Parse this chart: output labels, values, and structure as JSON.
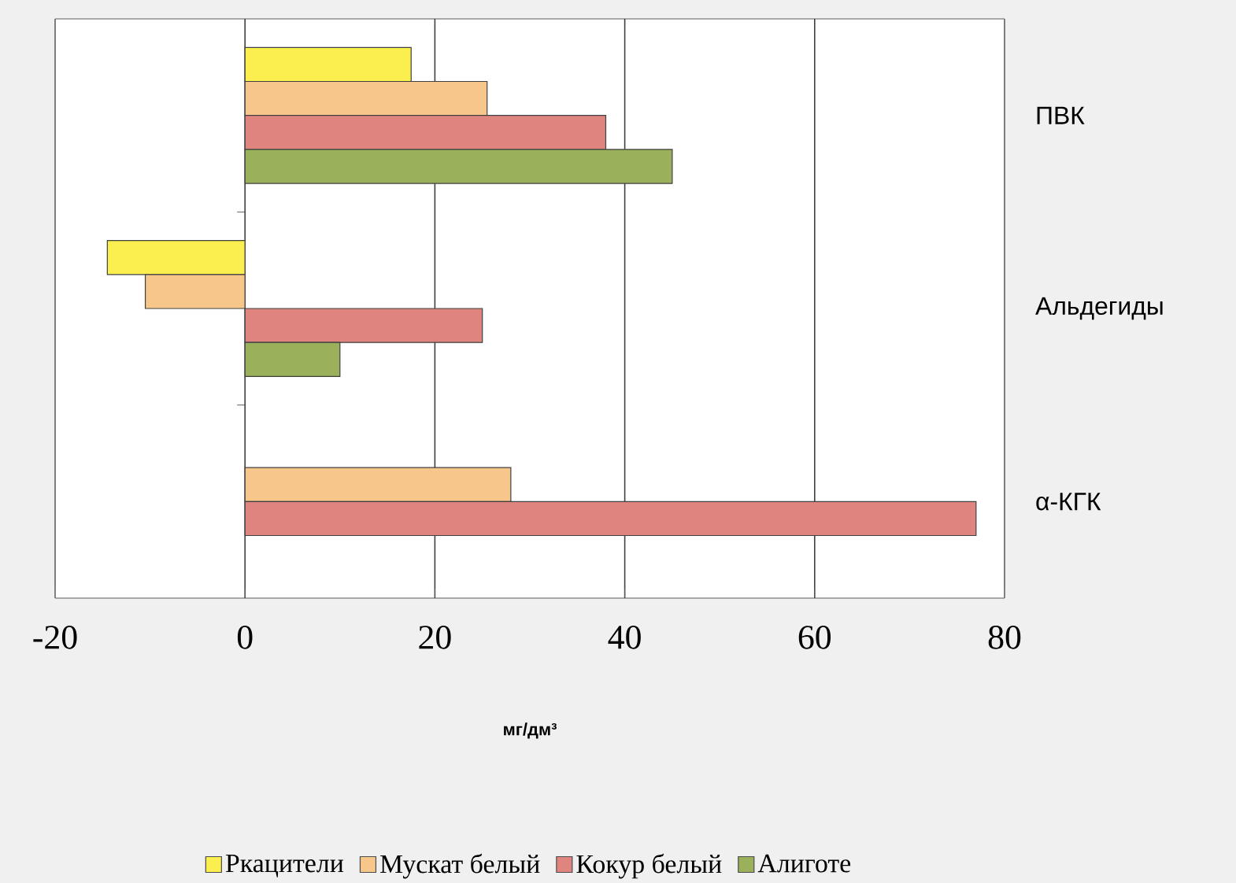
{
  "chart_data": {
    "type": "bar",
    "orientation": "horizontal",
    "categories": [
      "ПВК",
      "Альдегиды",
      "α-КГК"
    ],
    "xlabel": "мг/дм³",
    "xlim": [
      -20,
      80
    ],
    "xticks": [
      -20,
      0,
      20,
      40,
      60,
      80
    ],
    "grid": "x",
    "legend": "bottom",
    "series": [
      {
        "name": "Ркацители",
        "color": "#fbee4f",
        "values": [
          17.5,
          -14.5,
          null
        ]
      },
      {
        "name": "Мускат белый",
        "color": "#f7c68a",
        "values": [
          25.5,
          -10.5,
          28
        ]
      },
      {
        "name": "Кокур белый",
        "color": "#e08480",
        "values": [
          38,
          25,
          77
        ]
      },
      {
        "name": "Алиготе",
        "color": "#9bb05a",
        "values": [
          45,
          10,
          null
        ]
      }
    ]
  }
}
